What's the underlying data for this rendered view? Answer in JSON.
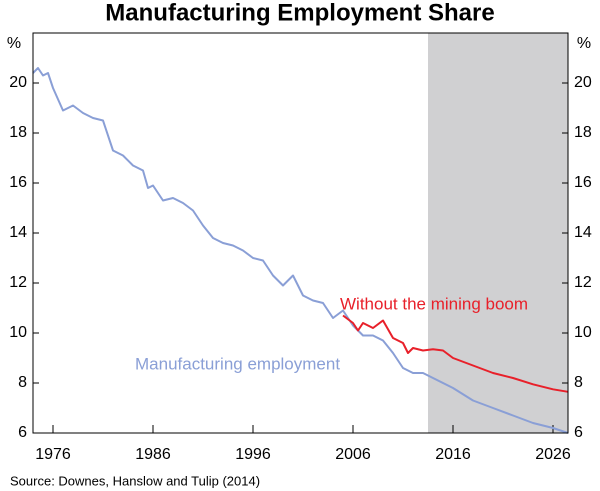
{
  "chart_data": {
    "type": "line",
    "title": "Manufacturing Employment Share",
    "source": "Source: Downes, Hanslow and Tulip (2014)",
    "y_unit": "%",
    "xlim": [
      1974,
      2027.5
    ],
    "xticks": [
      1976,
      1986,
      1996,
      2006,
      2016,
      2026
    ],
    "ylim": [
      6,
      22
    ],
    "yticks": [
      6,
      8,
      10,
      12,
      14,
      16,
      18,
      20
    ],
    "shaded_from": 2013.5,
    "shade_color": "#d0d0d2",
    "series": [
      {
        "name": "Manufacturing employment",
        "color": "#8a9fd6",
        "x": [
          1974,
          1974.5,
          1975,
          1975.5,
          1976,
          1977,
          1978,
          1979,
          1980,
          1981,
          1982,
          1983,
          1984,
          1985,
          1985.5,
          1986,
          1987,
          1988,
          1989,
          1990,
          1991,
          1992,
          1993,
          1994,
          1995,
          1996,
          1997,
          1998,
          1999,
          2000,
          2001,
          2002,
          2003,
          2004,
          2005,
          2006,
          2007,
          2008,
          2009,
          2010,
          2011,
          2012,
          2013,
          2014,
          2016,
          2018,
          2020,
          2022,
          2024,
          2026,
          2027.5
        ],
        "values": [
          20.4,
          20.6,
          20.3,
          20.4,
          19.8,
          18.9,
          19.1,
          18.8,
          18.6,
          18.5,
          17.3,
          17.1,
          16.7,
          16.5,
          15.8,
          15.9,
          15.3,
          15.4,
          15.2,
          14.9,
          14.3,
          13.8,
          13.6,
          13.5,
          13.3,
          13.0,
          12.9,
          12.3,
          11.9,
          12.3,
          11.5,
          11.3,
          11.2,
          10.6,
          10.9,
          10.3,
          9.9,
          9.9,
          9.7,
          9.2,
          8.6,
          8.4,
          8.4,
          8.2,
          7.8,
          7.3,
          7.0,
          6.7,
          6.4,
          6.2,
          6.0
        ]
      },
      {
        "name": "Without the mining boom",
        "color": "#e8202a",
        "x": [
          2005,
          2006,
          2006.5,
          2007,
          2008,
          2009,
          2010,
          2011,
          2011.5,
          2012,
          2013,
          2014,
          2015,
          2016,
          2018,
          2020,
          2022,
          2024,
          2026,
          2027.5
        ],
        "values": [
          10.7,
          10.4,
          10.1,
          10.4,
          10.2,
          10.5,
          9.8,
          9.6,
          9.2,
          9.4,
          9.3,
          9.35,
          9.3,
          9.0,
          8.7,
          8.4,
          8.2,
          7.95,
          7.75,
          7.65
        ]
      }
    ]
  }
}
